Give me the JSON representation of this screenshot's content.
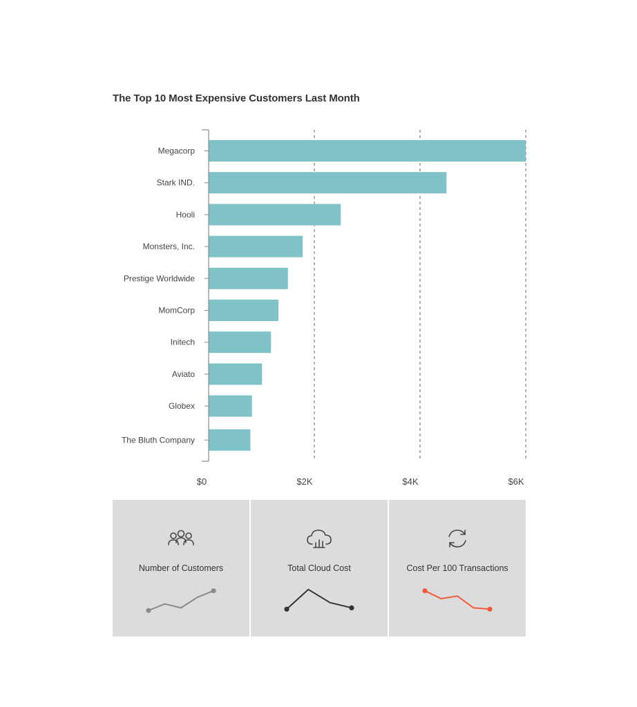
{
  "chart_data": {
    "type": "bar",
    "orientation": "horizontal",
    "title": "The Top 10 Most Expensive Customers Last Month",
    "categories": [
      "Megacorp",
      "Stark IND.",
      "Hooli",
      "Monsters, Inc.",
      "Prestige Worldwide",
      "MomCorp",
      "Initech",
      "Aviato",
      "Globex",
      "The Bluth Company"
    ],
    "values": [
      6000,
      4500,
      2500,
      1780,
      1500,
      1320,
      1180,
      1010,
      820,
      790
    ],
    "xlim": [
      0,
      6000
    ],
    "x_ticks": [
      0,
      2000,
      4000,
      6000
    ],
    "x_tick_labels": [
      "$0",
      "$2K",
      "$4K",
      "$6K"
    ],
    "grid": "vertical dashed",
    "bar_color": "#7fc3c9"
  },
  "cards": [
    {
      "label": "Number of Customers",
      "icon": "people-icon",
      "trend_color": "#8a8a8a",
      "trend": [
        0.1,
        0.35,
        0.2,
        0.6,
        0.85
      ],
      "end_marker": "last"
    },
    {
      "label": "Total Cloud Cost",
      "icon": "cloud-chart-icon",
      "trend_color": "#333333",
      "trend": [
        0.15,
        0.9,
        0.4,
        0.2
      ],
      "end_marker": "both"
    },
    {
      "label": "Cost Per 100 Transactions",
      "icon": "refresh-icon",
      "trend_color": "#f05a3a",
      "trend": [
        0.85,
        0.55,
        0.65,
        0.2,
        0.15
      ],
      "end_marker": "both"
    }
  ]
}
